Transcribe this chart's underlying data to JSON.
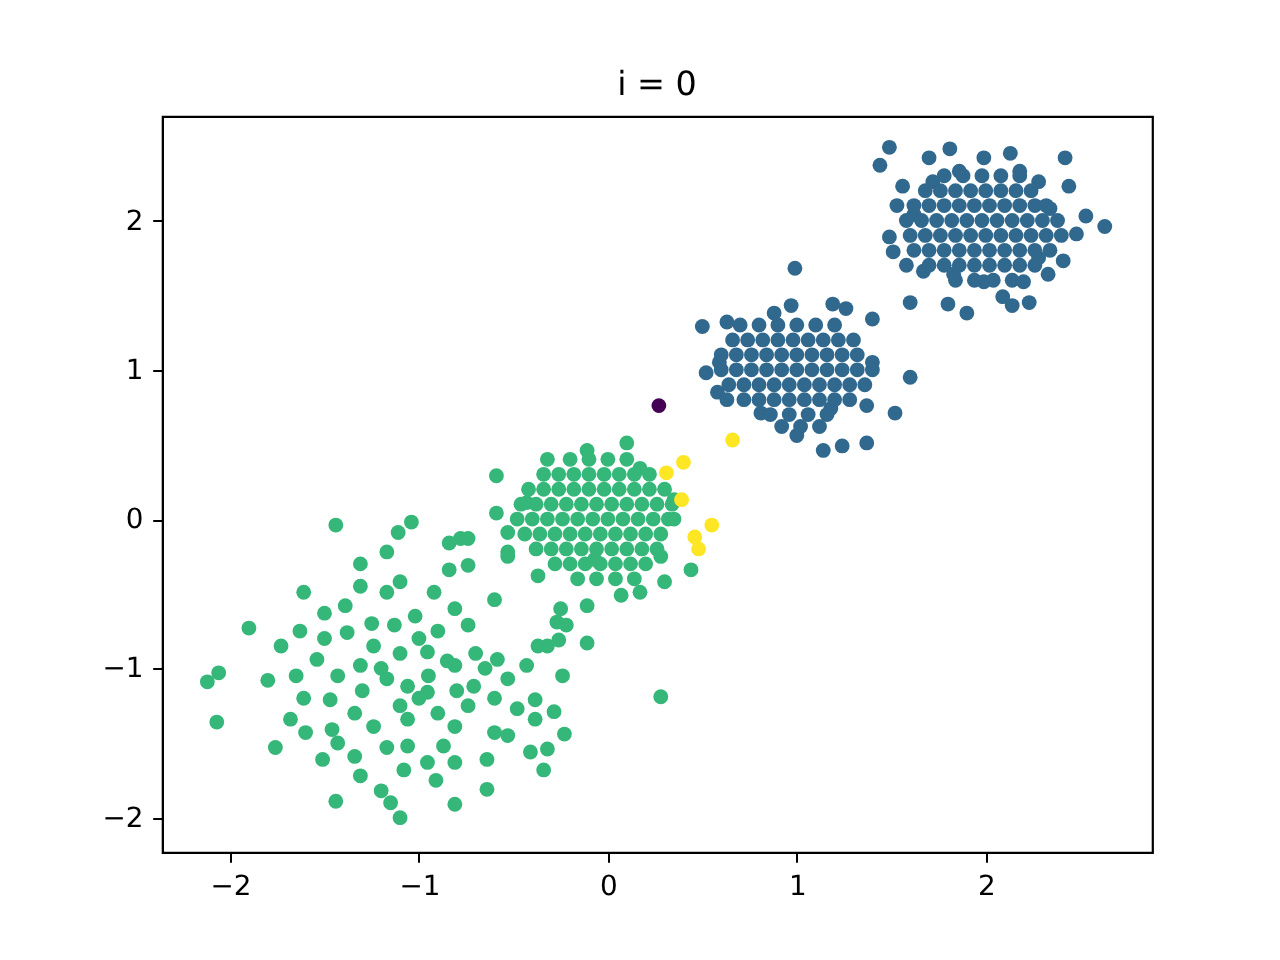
{
  "chart_data": {
    "type": "scatter",
    "title": "i = 0",
    "xlim": [
      -2.36,
      2.88
    ],
    "ylim": [
      -2.23,
      2.7
    ],
    "xticks": [
      {
        "value": -2,
        "label": "−2"
      },
      {
        "value": -1,
        "label": "−1"
      },
      0,
      1,
      2
    ],
    "yticks": [
      {
        "value": -2,
        "label": "−2"
      },
      {
        "value": -1,
        "label": "−1"
      },
      0,
      1,
      2
    ],
    "grid": false,
    "marker": "circle",
    "series": [
      {
        "color": "#31688e",
        "x": [
          1.49,
          1.44,
          1.81,
          2.13,
          1.99,
          1.7,
          2.42,
          2.44,
          1.56,
          2.63,
          2.53,
          2.48,
          2.41,
          2.33,
          2.23,
          2.14,
          2.09,
          1.9,
          1.8,
          1.6,
          1.49,
          1.53,
          1.51,
          1.58,
          1.67,
          1.83,
          1.99,
          2.2,
          2.28,
          2.34,
          2.28,
          2.18,
          1.86,
          1.72,
          1.62,
          1.78,
          1.88,
          1.98,
          2.08,
          2.18,
          1.68,
          1.76,
          1.84,
          1.92,
          2.0,
          2.08,
          2.16,
          2.24,
          1.62,
          1.7,
          1.78,
          1.86,
          1.94,
          2.02,
          2.1,
          2.18,
          2.26,
          2.32,
          1.58,
          1.66,
          1.74,
          1.82,
          1.9,
          1.98,
          2.06,
          2.14,
          2.22,
          2.3,
          2.38,
          1.6,
          1.68,
          1.76,
          1.84,
          1.92,
          2.0,
          2.08,
          2.16,
          2.24,
          2.32,
          2.4,
          1.62,
          1.7,
          1.78,
          1.86,
          1.94,
          2.02,
          2.1,
          2.18,
          2.26,
          2.34,
          1.7,
          1.78,
          1.86,
          1.94,
          2.02,
          2.1,
          2.18,
          2.26,
          1.84,
          1.94,
          2.04,
          2.14,
          1.26,
          1.4,
          0.99,
          1.6,
          1.52,
          1.37,
          1.24,
          1.14,
          1.0,
          0.81,
          0.58,
          0.52,
          0.5,
          0.63,
          0.7,
          0.97,
          1.19,
          1.4,
          1.37,
          1.18,
          0.63,
          0.59,
          0.88,
          0.8,
          0.9,
          1.0,
          1.1,
          1.2,
          0.66,
          0.74,
          0.82,
          0.9,
          0.98,
          1.06,
          1.14,
          1.22,
          1.3,
          0.6,
          0.68,
          0.76,
          0.84,
          0.92,
          1.0,
          1.08,
          1.16,
          1.24,
          1.32,
          0.6,
          0.68,
          0.76,
          0.84,
          0.92,
          1.0,
          1.08,
          1.16,
          1.24,
          1.32,
          1.4,
          0.64,
          0.72,
          0.8,
          0.88,
          0.96,
          1.04,
          1.12,
          1.2,
          1.28,
          1.36,
          0.72,
          0.8,
          0.88,
          0.96,
          1.04,
          1.12,
          1.2,
          1.28,
          0.86,
          0.96,
          1.06,
          1.16,
          0.92,
          1.02,
          1.12
        ],
        "values": [
          2.49,
          2.37,
          2.48,
          2.45,
          2.42,
          2.42,
          2.42,
          2.23,
          2.23,
          1.96,
          2.03,
          1.91,
          1.73,
          1.64,
          1.45,
          1.43,
          1.49,
          1.38,
          1.44,
          1.45,
          1.89,
          2.1,
          1.79,
          1.7,
          1.66,
          1.64,
          1.59,
          1.59,
          1.75,
          2.08,
          2.26,
          2.33,
          2.33,
          2.26,
          2.04,
          2.3,
          2.3,
          2.3,
          2.3,
          2.3,
          2.2,
          2.2,
          2.2,
          2.2,
          2.2,
          2.2,
          2.2,
          2.2,
          2.1,
          2.1,
          2.1,
          2.1,
          2.1,
          2.1,
          2.1,
          2.1,
          2.1,
          2.1,
          2.0,
          2.0,
          2.0,
          2.0,
          2.0,
          2.0,
          2.0,
          2.0,
          2.0,
          2.0,
          2.0,
          1.9,
          1.9,
          1.9,
          1.9,
          1.9,
          1.9,
          1.9,
          1.9,
          1.9,
          1.9,
          1.9,
          1.8,
          1.8,
          1.8,
          1.8,
          1.8,
          1.8,
          1.8,
          1.8,
          1.8,
          1.8,
          1.7,
          1.7,
          1.7,
          1.7,
          1.7,
          1.7,
          1.7,
          1.7,
          1.6,
          1.6,
          1.6,
          1.6,
          1.41,
          1.34,
          1.68,
          0.95,
          0.71,
          0.51,
          0.49,
          0.46,
          0.56,
          0.71,
          0.85,
          0.98,
          1.29,
          1.32,
          1.3,
          1.43,
          1.44,
          1.05,
          0.76,
          0.74,
          0.8,
          1.05,
          1.38,
          1.3,
          1.3,
          1.3,
          1.3,
          1.3,
          1.2,
          1.2,
          1.2,
          1.2,
          1.2,
          1.2,
          1.2,
          1.2,
          1.2,
          1.1,
          1.1,
          1.1,
          1.1,
          1.1,
          1.1,
          1.1,
          1.1,
          1.1,
          1.1,
          1.0,
          1.0,
          1.0,
          1.0,
          1.0,
          1.0,
          1.0,
          1.0,
          1.0,
          1.0,
          1.0,
          0.9,
          0.9,
          0.9,
          0.9,
          0.9,
          0.9,
          0.9,
          0.9,
          0.9,
          0.9,
          0.8,
          0.8,
          0.8,
          0.8,
          0.8,
          0.8,
          0.8,
          0.8,
          0.7,
          0.7,
          0.7,
          0.7,
          0.62,
          0.62,
          0.62
        ]
      },
      {
        "color": "#35b779",
        "x": [
          0.1,
          -0.59,
          -0.32,
          -0.11,
          0.17,
          0.35,
          0.35,
          0.44,
          0.3,
          0.17,
          0.07,
          -0.11,
          -0.25,
          -0.37,
          -0.53,
          -0.53,
          -0.59,
          -0.43,
          -0.74,
          -0.07,
          0.28,
          -0.11,
          -0.22,
          -0.32,
          0.28,
          -0.2,
          -0.1,
          0.0,
          0.1,
          -0.34,
          -0.26,
          -0.18,
          -0.1,
          -0.02,
          0.06,
          0.14,
          0.22,
          -0.42,
          -0.34,
          -0.26,
          -0.18,
          -0.1,
          -0.02,
          0.06,
          0.14,
          0.22,
          0.3,
          -0.46,
          -0.38,
          -0.3,
          -0.22,
          -0.14,
          -0.06,
          0.02,
          0.1,
          0.18,
          0.26,
          0.34,
          -0.48,
          -0.4,
          -0.32,
          -0.24,
          -0.16,
          -0.08,
          0.0,
          0.08,
          0.16,
          0.24,
          0.32,
          -0.44,
          -0.36,
          -0.28,
          -0.2,
          -0.12,
          -0.04,
          0.04,
          0.12,
          0.2,
          0.28,
          -0.38,
          -0.3,
          -0.22,
          -0.14,
          -0.06,
          0.02,
          0.1,
          0.18,
          0.26,
          -0.28,
          -0.2,
          -0.12,
          -0.04,
          0.04,
          0.12,
          0.2,
          -0.16,
          -0.06,
          0.04,
          0.14,
          -1.44,
          -1.04,
          -1.11,
          -1.17,
          -1.31,
          -1.61,
          -1.9,
          -1.73,
          -1.63,
          -2.06,
          -2.12,
          -2.07,
          -1.8,
          -1.65,
          -1.61,
          -1.68,
          -1.76,
          -1.6,
          -1.51,
          -1.44,
          -1.31,
          -1.2,
          -1.1,
          -1.15,
          -1.08,
          -0.955,
          -0.91,
          -0.81,
          -0.81,
          -0.64,
          -0.64,
          -0.41,
          -0.34,
          -0.32,
          -0.23,
          -0.285,
          -0.385,
          -0.385,
          -0.24,
          -0.48,
          -0.53,
          -0.81,
          -0.87,
          -1.06,
          -1.17,
          -1.34,
          -1.46,
          -1.43,
          -0.27,
          -0.37,
          -0.26,
          -0.43,
          -0.585,
          -0.53,
          -0.6,
          -0.53,
          -0.84,
          -0.78,
          -0.84,
          -0.74,
          -0.92,
          -0.81,
          -0.74,
          -1.1,
          -1.17,
          -1.31,
          -1.5,
          -1.39,
          -1.54,
          -1.43,
          -1.47,
          -1.34,
          -1.24,
          -1.06,
          -1.17,
          -1.24,
          -1.13,
          -1.02,
          -0.955,
          -0.81,
          -0.71,
          -0.74,
          -0.955,
          -1.06,
          -1.31,
          -1.38,
          -1.5,
          -0.6,
          -1.0,
          -0.9,
          -1.1,
          -0.85,
          -1.2,
          -0.95,
          -1.0,
          -0.7,
          -0.65,
          -1.25,
          -0.9,
          -0.6,
          -1.1,
          -0.8,
          -1.3
        ],
        "values": [
          0.51,
          0.29,
          0.4,
          0.46,
          0.34,
          0.13,
          0.0,
          -0.34,
          -0.42,
          -0.49,
          -0.51,
          -0.58,
          -0.6,
          -0.38,
          -0.25,
          -0.09,
          0.04,
          0.11,
          -0.13,
          -0.27,
          -0.25,
          -0.83,
          -0.71,
          -0.85,
          -1.19,
          0.4,
          0.4,
          0.4,
          0.4,
          0.3,
          0.3,
          0.3,
          0.3,
          0.3,
          0.3,
          0.3,
          0.3,
          0.2,
          0.2,
          0.2,
          0.2,
          0.2,
          0.2,
          0.2,
          0.2,
          0.2,
          0.2,
          0.1,
          0.1,
          0.1,
          0.1,
          0.1,
          0.1,
          0.1,
          0.1,
          0.1,
          0.1,
          0.1,
          0.0,
          0.0,
          0.0,
          0.0,
          0.0,
          0.0,
          0.0,
          0.0,
          0.0,
          0.0,
          0.0,
          -0.1,
          -0.1,
          -0.1,
          -0.1,
          -0.1,
          -0.1,
          -0.1,
          -0.1,
          -0.1,
          -0.1,
          -0.2,
          -0.2,
          -0.2,
          -0.2,
          -0.2,
          -0.2,
          -0.2,
          -0.2,
          -0.2,
          -0.3,
          -0.3,
          -0.3,
          -0.3,
          -0.3,
          -0.3,
          -0.3,
          -0.4,
          -0.4,
          -0.4,
          -0.4,
          -0.04,
          -0.02,
          -0.09,
          -0.22,
          -0.3,
          -0.49,
          -0.73,
          -0.85,
          -0.75,
          -1.03,
          -1.09,
          -1.36,
          -1.08,
          -1.05,
          -1.2,
          -1.34,
          -1.53,
          -1.43,
          -1.61,
          -1.89,
          -1.72,
          -1.82,
          -2.0,
          -1.9,
          -1.68,
          -1.63,
          -1.75,
          -1.91,
          -1.63,
          -1.81,
          -1.61,
          -1.56,
          -1.68,
          -1.54,
          -1.44,
          -1.29,
          -1.34,
          -1.21,
          -1.05,
          -1.27,
          -1.45,
          -1.39,
          -1.52,
          -1.52,
          -1.53,
          -1.59,
          -1.41,
          -1.5,
          -0.69,
          -0.85,
          -0.81,
          -0.98,
          -0.94,
          -1.07,
          -0.54,
          -0.22,
          -0.16,
          -0.13,
          -0.34,
          -0.31,
          -0.49,
          -0.6,
          -0.71,
          -0.42,
          -0.49,
          -0.45,
          -0.63,
          -0.58,
          -0.94,
          -1.05,
          -1.21,
          -1.3,
          -1.39,
          -1.34,
          -1.07,
          -0.85,
          -0.71,
          -0.65,
          -0.89,
          -0.98,
          -1.12,
          -1.25,
          -1.16,
          -1.12,
          -0.98,
          -0.76,
          -0.8,
          -1.43,
          -0.8,
          -0.75,
          -0.9,
          -0.95,
          -1.0,
          -1.05,
          -1.2,
          -0.9,
          -1.0,
          -0.7,
          -1.3,
          -1.2,
          -1.25,
          -1.15,
          -1.15
        ]
      },
      {
        "color": "#fde725",
        "x": [
          0.66,
          0.4,
          0.31,
          0.39,
          0.55,
          0.46,
          0.48
        ],
        "values": [
          0.53,
          0.38,
          0.31,
          0.13,
          -0.04,
          -0.12,
          -0.2
        ]
      },
      {
        "color": "#440154",
        "x": [
          0.27
        ],
        "values": [
          0.76
        ]
      }
    ]
  }
}
